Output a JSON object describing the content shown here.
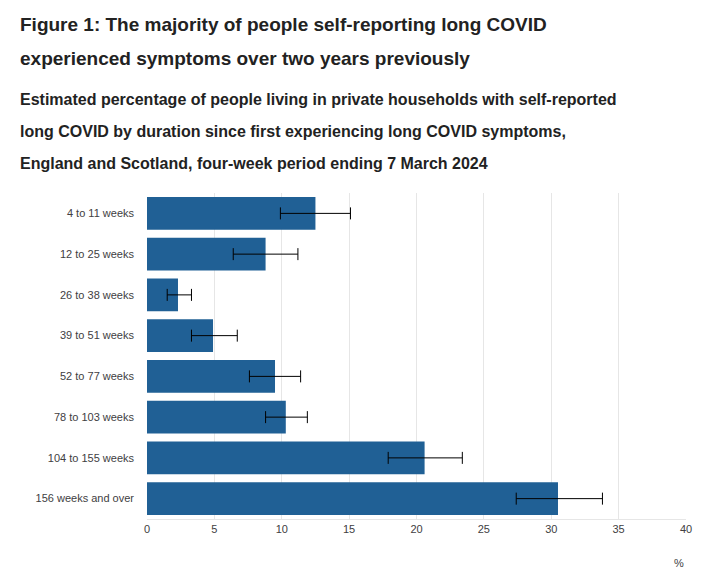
{
  "chart_data": {
    "type": "bar",
    "orientation": "horizontal",
    "title": "Figure 1: The majority of people self-reporting long COVID experienced symptoms over two years previously",
    "subtitle": "Estimated percentage of people living in private households with self-reported long COVID by duration since first experiencing long COVID symptoms, England and Scotland, four-week period ending 7 March 2024",
    "x_label": "%",
    "categories": [
      "4 to 11 weeks",
      "12 to 25 weeks",
      "26 to 38 weeks",
      "39 to 51 weeks",
      "52 to 77 weeks",
      "78 to 103 weeks",
      "104 to 155 weeks",
      "156 weeks and over"
    ],
    "values": [
      12.5,
      8.8,
      2.3,
      4.9,
      9.5,
      10.3,
      20.6,
      30.5
    ],
    "ci_lower": [
      9.9,
      6.4,
      1.5,
      3.3,
      7.6,
      8.8,
      17.9,
      27.4
    ],
    "ci_upper": [
      15.1,
      11.2,
      3.3,
      6.7,
      11.4,
      11.9,
      23.4,
      33.8
    ],
    "color": "#206095",
    "xlim": [
      0,
      40
    ],
    "xticks": [
      0,
      5,
      10,
      15,
      20,
      25,
      30,
      35,
      40
    ],
    "grid": true
  }
}
